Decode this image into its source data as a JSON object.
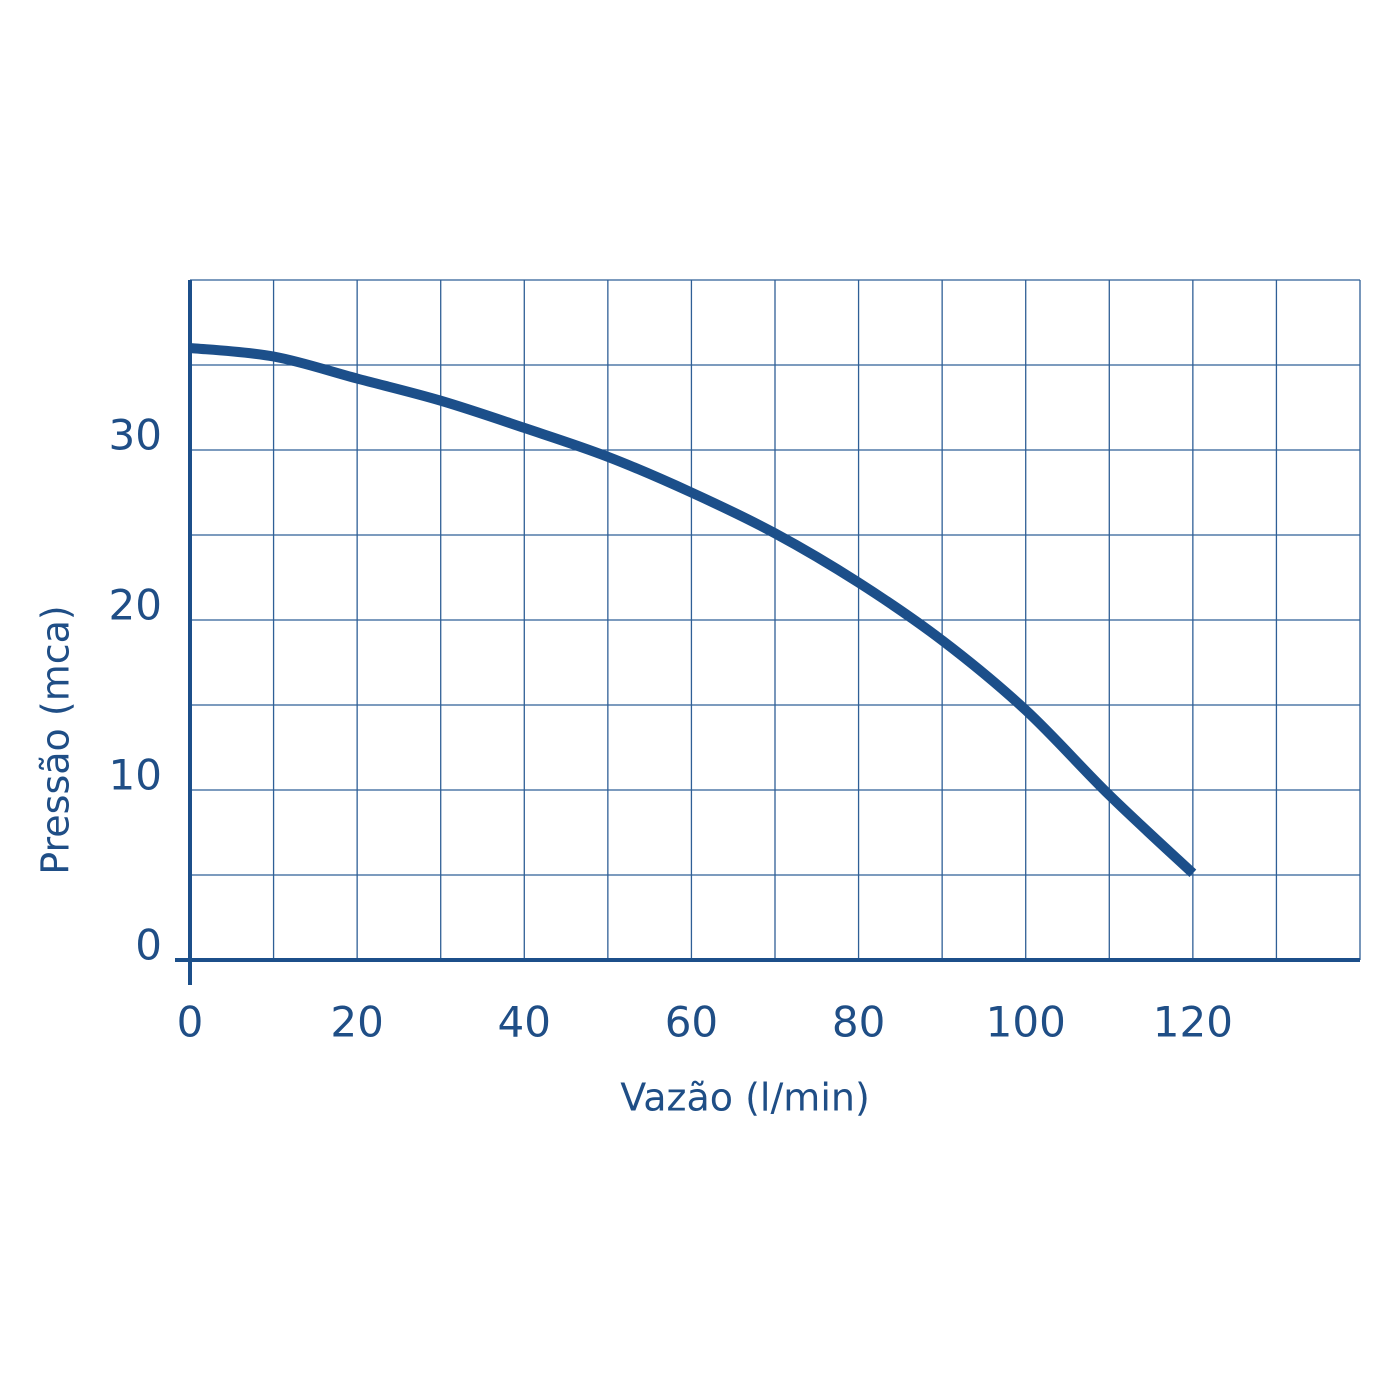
{
  "chart_data": {
    "type": "line",
    "xlabel": "Vazão (l/min)",
    "ylabel": "Pressão (mca)",
    "x": [
      0,
      10,
      20,
      30,
      40,
      50,
      60,
      70,
      80,
      90,
      100,
      110,
      120
    ],
    "series": [
      {
        "color": "#1c4f8a",
        "values": [
          36,
          35.5,
          34.2,
          32.9,
          31.3,
          29.6,
          27.5,
          25.1,
          22.2,
          18.8,
          14.7,
          9.7,
          5.1
        ]
      }
    ],
    "xlim": [
      0,
      140
    ],
    "ylim": [
      0,
      40
    ],
    "xticks": [
      0,
      20,
      40,
      60,
      80,
      100,
      120
    ],
    "yticks": [
      0,
      10,
      20,
      30
    ],
    "xgridlines": [
      0,
      10,
      20,
      30,
      40,
      50,
      60,
      70,
      80,
      90,
      100,
      110,
      120,
      130,
      140
    ],
    "ygridlines": [
      0,
      5,
      10,
      15,
      20,
      25,
      30,
      35,
      40
    ],
    "grid": true
  }
}
